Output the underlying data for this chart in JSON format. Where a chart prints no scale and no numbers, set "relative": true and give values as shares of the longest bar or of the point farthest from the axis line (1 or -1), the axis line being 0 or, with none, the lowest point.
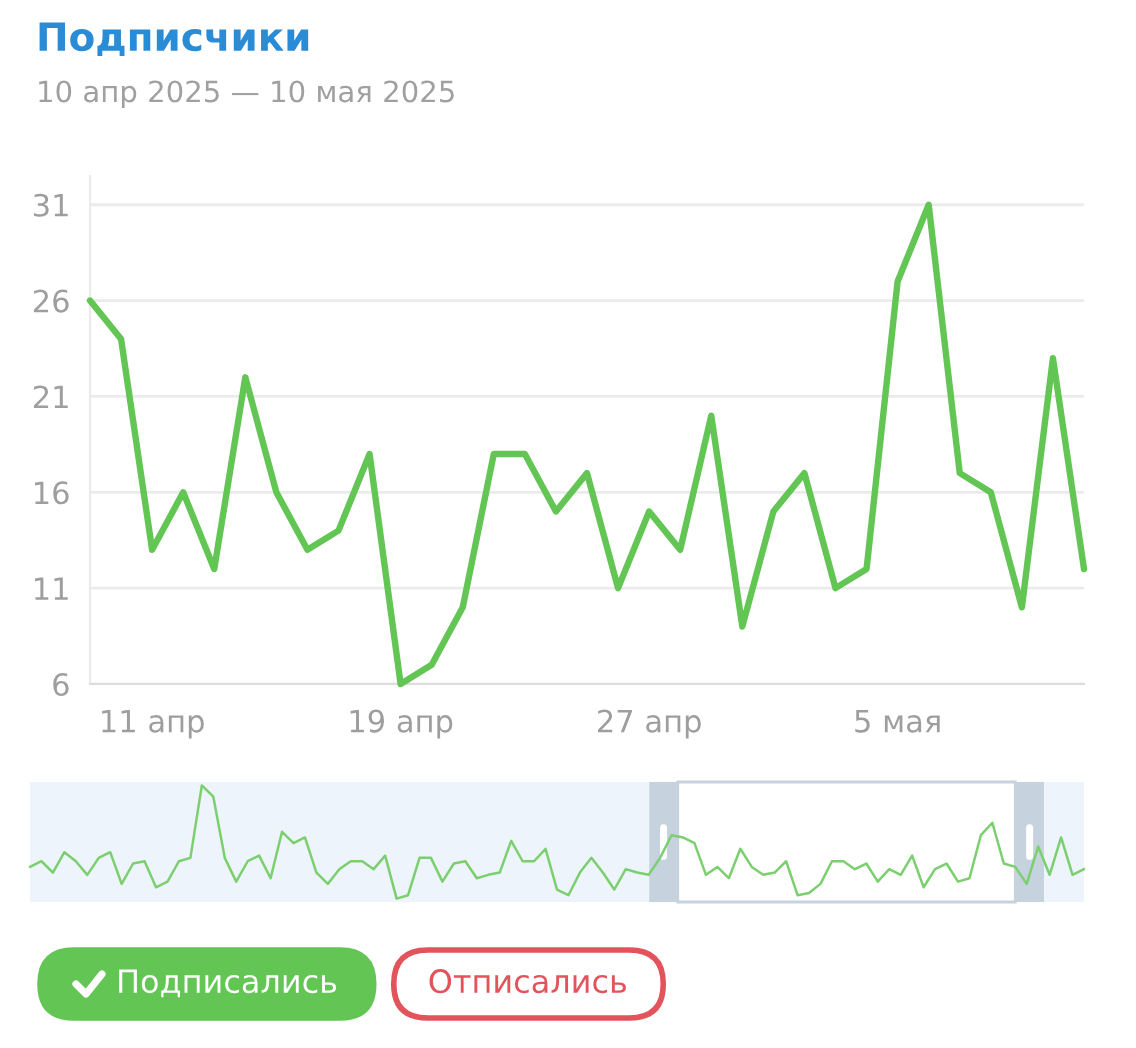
{
  "chart_data": [
    {
      "type": "line",
      "title": "Подписчики",
      "subtitle": "10 апр 2025 — 10 мая 2025",
      "x": [
        "2025-04-09",
        "2025-04-10",
        "2025-04-11",
        "2025-04-12",
        "2025-04-13",
        "2025-04-14",
        "2025-04-15",
        "2025-04-16",
        "2025-04-17",
        "2025-04-18",
        "2025-04-19",
        "2025-04-20",
        "2025-04-21",
        "2025-04-22",
        "2025-04-23",
        "2025-04-24",
        "2025-04-25",
        "2025-04-26",
        "2025-04-27",
        "2025-04-28",
        "2025-04-29",
        "2025-04-30",
        "2025-05-01",
        "2025-05-02",
        "2025-05-03",
        "2025-05-04",
        "2025-05-05",
        "2025-05-06",
        "2025-05-07",
        "2025-05-08",
        "2025-05-09",
        "2025-05-10",
        "2025-05-11"
      ],
      "series": [
        {
          "name": "Подписались",
          "color": "#62c554",
          "values": [
            26,
            24,
            13,
            16,
            12,
            22,
            16,
            13,
            14,
            18,
            6,
            7,
            10,
            18,
            18,
            15,
            17,
            11,
            15,
            13,
            20,
            9,
            15,
            17,
            11,
            12,
            27,
            31,
            17,
            16,
            10,
            23,
            12
          ]
        },
        {
          "name": "Отписались",
          "color": "#e2535b",
          "values": [
            null,
            null,
            null,
            null,
            null,
            null,
            null,
            null,
            null,
            null,
            null,
            null,
            null,
            null,
            null,
            null,
            null,
            null,
            null,
            null,
            null,
            null,
            null,
            null,
            null,
            null,
            null,
            null,
            null,
            null,
            null,
            null,
            null
          ]
        }
      ],
      "xlim": [
        "2025-04-09",
        "2025-05-11"
      ],
      "xticks": [
        {
          "value": "2025-04-11",
          "label": "11 апр"
        },
        {
          "value": "2025-04-19",
          "label": "19 апр"
        },
        {
          "value": "2025-04-27",
          "label": "27 апр"
        },
        {
          "value": "2025-05-05",
          "label": "5 мая"
        }
      ],
      "ylim": [
        6,
        32.5
      ],
      "yticks": [
        6,
        11,
        16,
        21,
        26,
        31
      ],
      "grid": "y",
      "legend": "bottom left"
    },
    {
      "type": "line",
      "relative": true,
      "categories": [
        null,
        null,
        null,
        null,
        null,
        null,
        null,
        null,
        null,
        null,
        null,
        null,
        null,
        null,
        null,
        null,
        null,
        null,
        null,
        null,
        null,
        null,
        null,
        null,
        null,
        null,
        null,
        null,
        null,
        null,
        null,
        null,
        null,
        null,
        null,
        null,
        null,
        null,
        null,
        null,
        null,
        null,
        null,
        null,
        null,
        null,
        null,
        null,
        null,
        null,
        null,
        null,
        null,
        null,
        null,
        null,
        null,
        null,
        null,
        null,
        null,
        null,
        null,
        null,
        null,
        null,
        null,
        null,
        null,
        null,
        null,
        null,
        null,
        null,
        null,
        null,
        null,
        null,
        null,
        null,
        null,
        null,
        null,
        null,
        null,
        null,
        null,
        null,
        null,
        null,
        null,
        null,
        null
      ],
      "values": [
        0.28,
        0.33,
        0.23,
        0.41,
        0.33,
        0.21,
        0.36,
        0.41,
        0.13,
        0.31,
        0.33,
        0.1,
        0.15,
        0.33,
        0.36,
        1.0,
        0.9,
        0.36,
        0.15,
        0.33,
        0.38,
        0.18,
        0.59,
        0.49,
        0.54,
        0.23,
        0.13,
        0.26,
        0.33,
        0.33,
        0.26,
        0.38,
        0.0,
        0.03,
        0.36,
        0.36,
        0.15,
        0.31,
        0.33,
        0.18,
        0.21,
        0.23,
        0.51,
        0.33,
        0.33,
        0.44,
        0.08,
        0.03,
        0.23,
        0.36,
        0.23,
        0.08,
        0.26,
        0.23,
        0.21,
        0.36,
        0.56,
        0.54,
        0.49,
        0.21,
        0.28,
        0.18,
        0.44,
        0.28,
        0.21,
        0.23,
        0.33,
        0.03,
        0.05,
        0.13,
        0.33,
        0.33,
        0.26,
        0.31,
        0.15,
        0.26,
        0.21,
        0.38,
        0.1,
        0.26,
        0.31,
        0.15,
        0.18,
        0.56,
        0.67,
        0.31,
        0.28,
        0.13,
        0.46,
        0.21,
        0.54,
        0.21,
        0.26
      ],
      "color": "#7ccf6f",
      "tick_labels": false
    }
  ]
}
